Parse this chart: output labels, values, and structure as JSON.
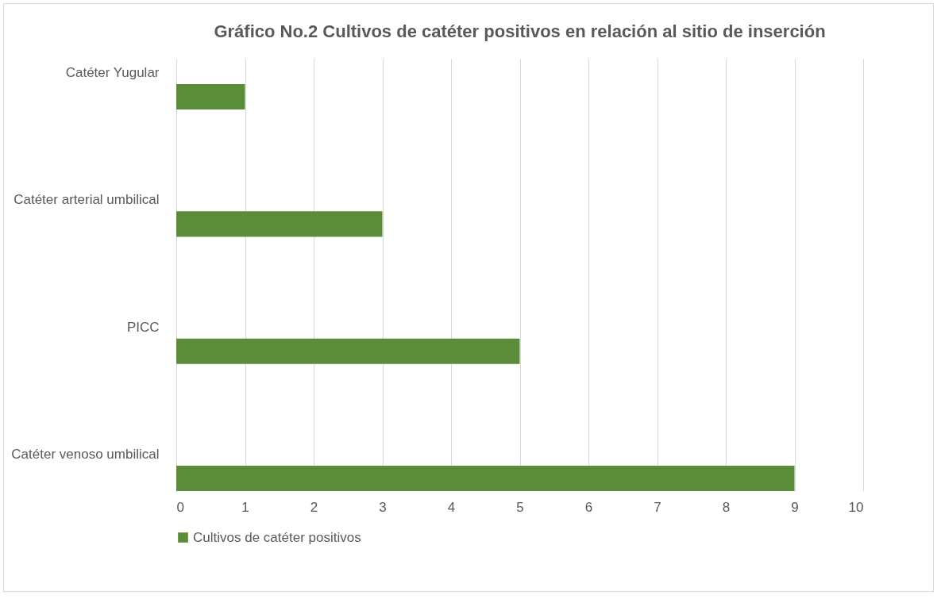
{
  "chart_data": {
    "type": "bar",
    "orientation": "horizontal",
    "title": "Gráfico No.2 Cultivos de catéter positivos en relación al sitio de inserción",
    "categories": [
      "Catéter Yugular",
      "Catéter arterial umbilical",
      "PICC",
      "Catéter venoso umbilical"
    ],
    "series": [
      {
        "name": "Cultivos de catéter positivos",
        "color": "#5b8c3a",
        "values": [
          1,
          3,
          5,
          9
        ]
      }
    ],
    "xlim": [
      0,
      10
    ],
    "xticks": [
      0,
      1,
      2,
      3,
      4,
      5,
      6,
      7,
      8,
      9,
      10
    ],
    "grid": "x",
    "legend": "bottom"
  }
}
